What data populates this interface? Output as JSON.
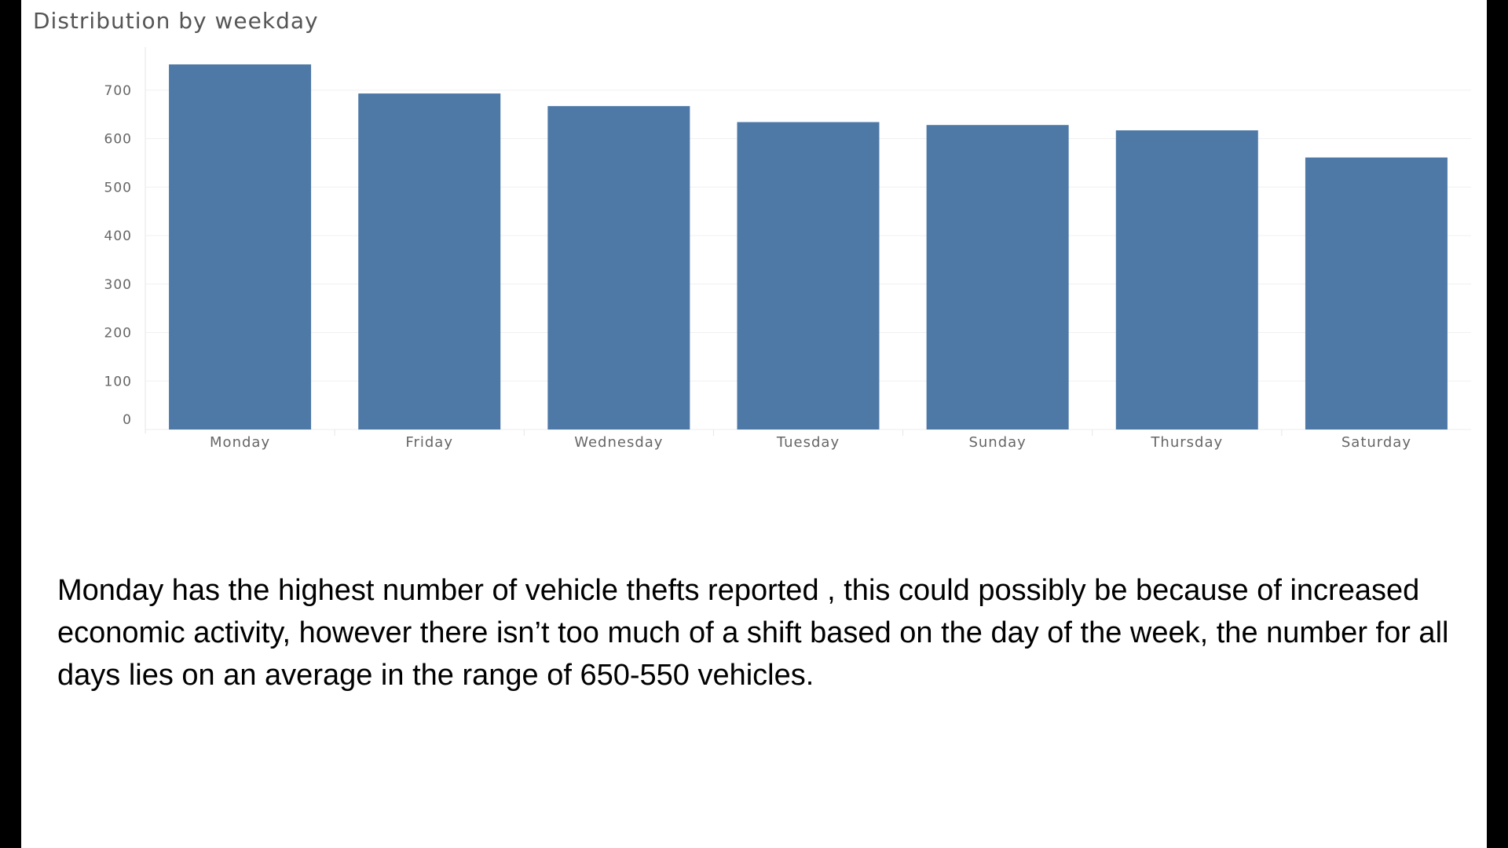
{
  "chart_data": {
    "type": "bar",
    "title": "Distribution by weekday",
    "xlabel": "",
    "ylabel": "",
    "categories": [
      "Monday",
      "Friday",
      "Wednesday",
      "Tuesday",
      "Sunday",
      "Thursday",
      "Saturday"
    ],
    "values": [
      753,
      693,
      667,
      634,
      628,
      617,
      561
    ],
    "yticks": [
      0,
      100,
      200,
      300,
      400,
      500,
      600,
      700
    ],
    "ylim": [
      0,
      780
    ],
    "grid": true,
    "legend": "none",
    "bar_color": "#4e79a7"
  },
  "caption": {
    "text": "Monday has the highest number of vehicle thefts reported , this could possibly be because of increased economic activity, however there isn’t too much of a shift based on the day of the week, the number for all days lies on an average in the range of 650-550 vehicles."
  }
}
